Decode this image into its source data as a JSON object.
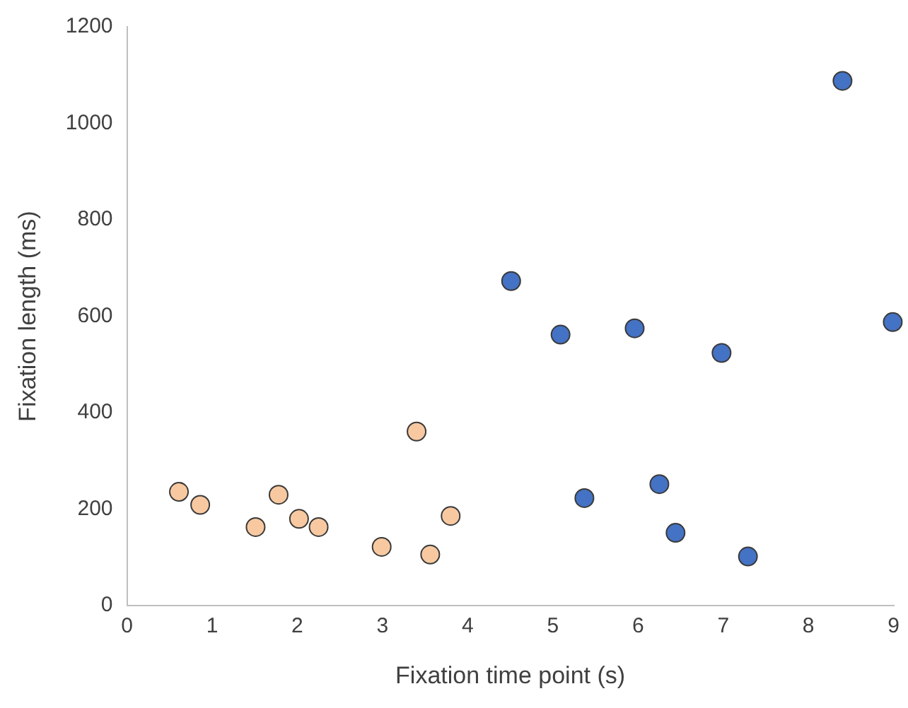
{
  "chart_data": {
    "type": "scatter",
    "xlabel": "Fixation time point (s)",
    "ylabel": "Fixation length (ms)",
    "xlim": [
      0,
      9
    ],
    "xticks": [
      0,
      1,
      2,
      3,
      4,
      5,
      6,
      7,
      8,
      9
    ],
    "ylim": [
      0,
      1200
    ],
    "yticks": [
      0,
      200,
      400,
      600,
      800,
      1000,
      1200
    ],
    "grid": false,
    "legend": false,
    "marker": "circle",
    "series": [
      {
        "color": "#f8c9a1",
        "x": [
          0.61,
          0.86,
          1.51,
          1.78,
          2.02,
          2.25,
          2.99,
          3.4,
          3.56,
          3.8
        ],
        "values": [
          236,
          209,
          163,
          230,
          180,
          163,
          122,
          361,
          106,
          186
        ]
      },
      {
        "color": "#4472c4",
        "x": [
          4.51,
          5.09,
          5.37,
          5.96,
          6.25,
          6.44,
          6.98,
          7.29,
          8.4,
          8.99
        ],
        "values": [
          673,
          562,
          223,
          575,
          252,
          151,
          524,
          102,
          1088,
          588
        ]
      }
    ]
  }
}
